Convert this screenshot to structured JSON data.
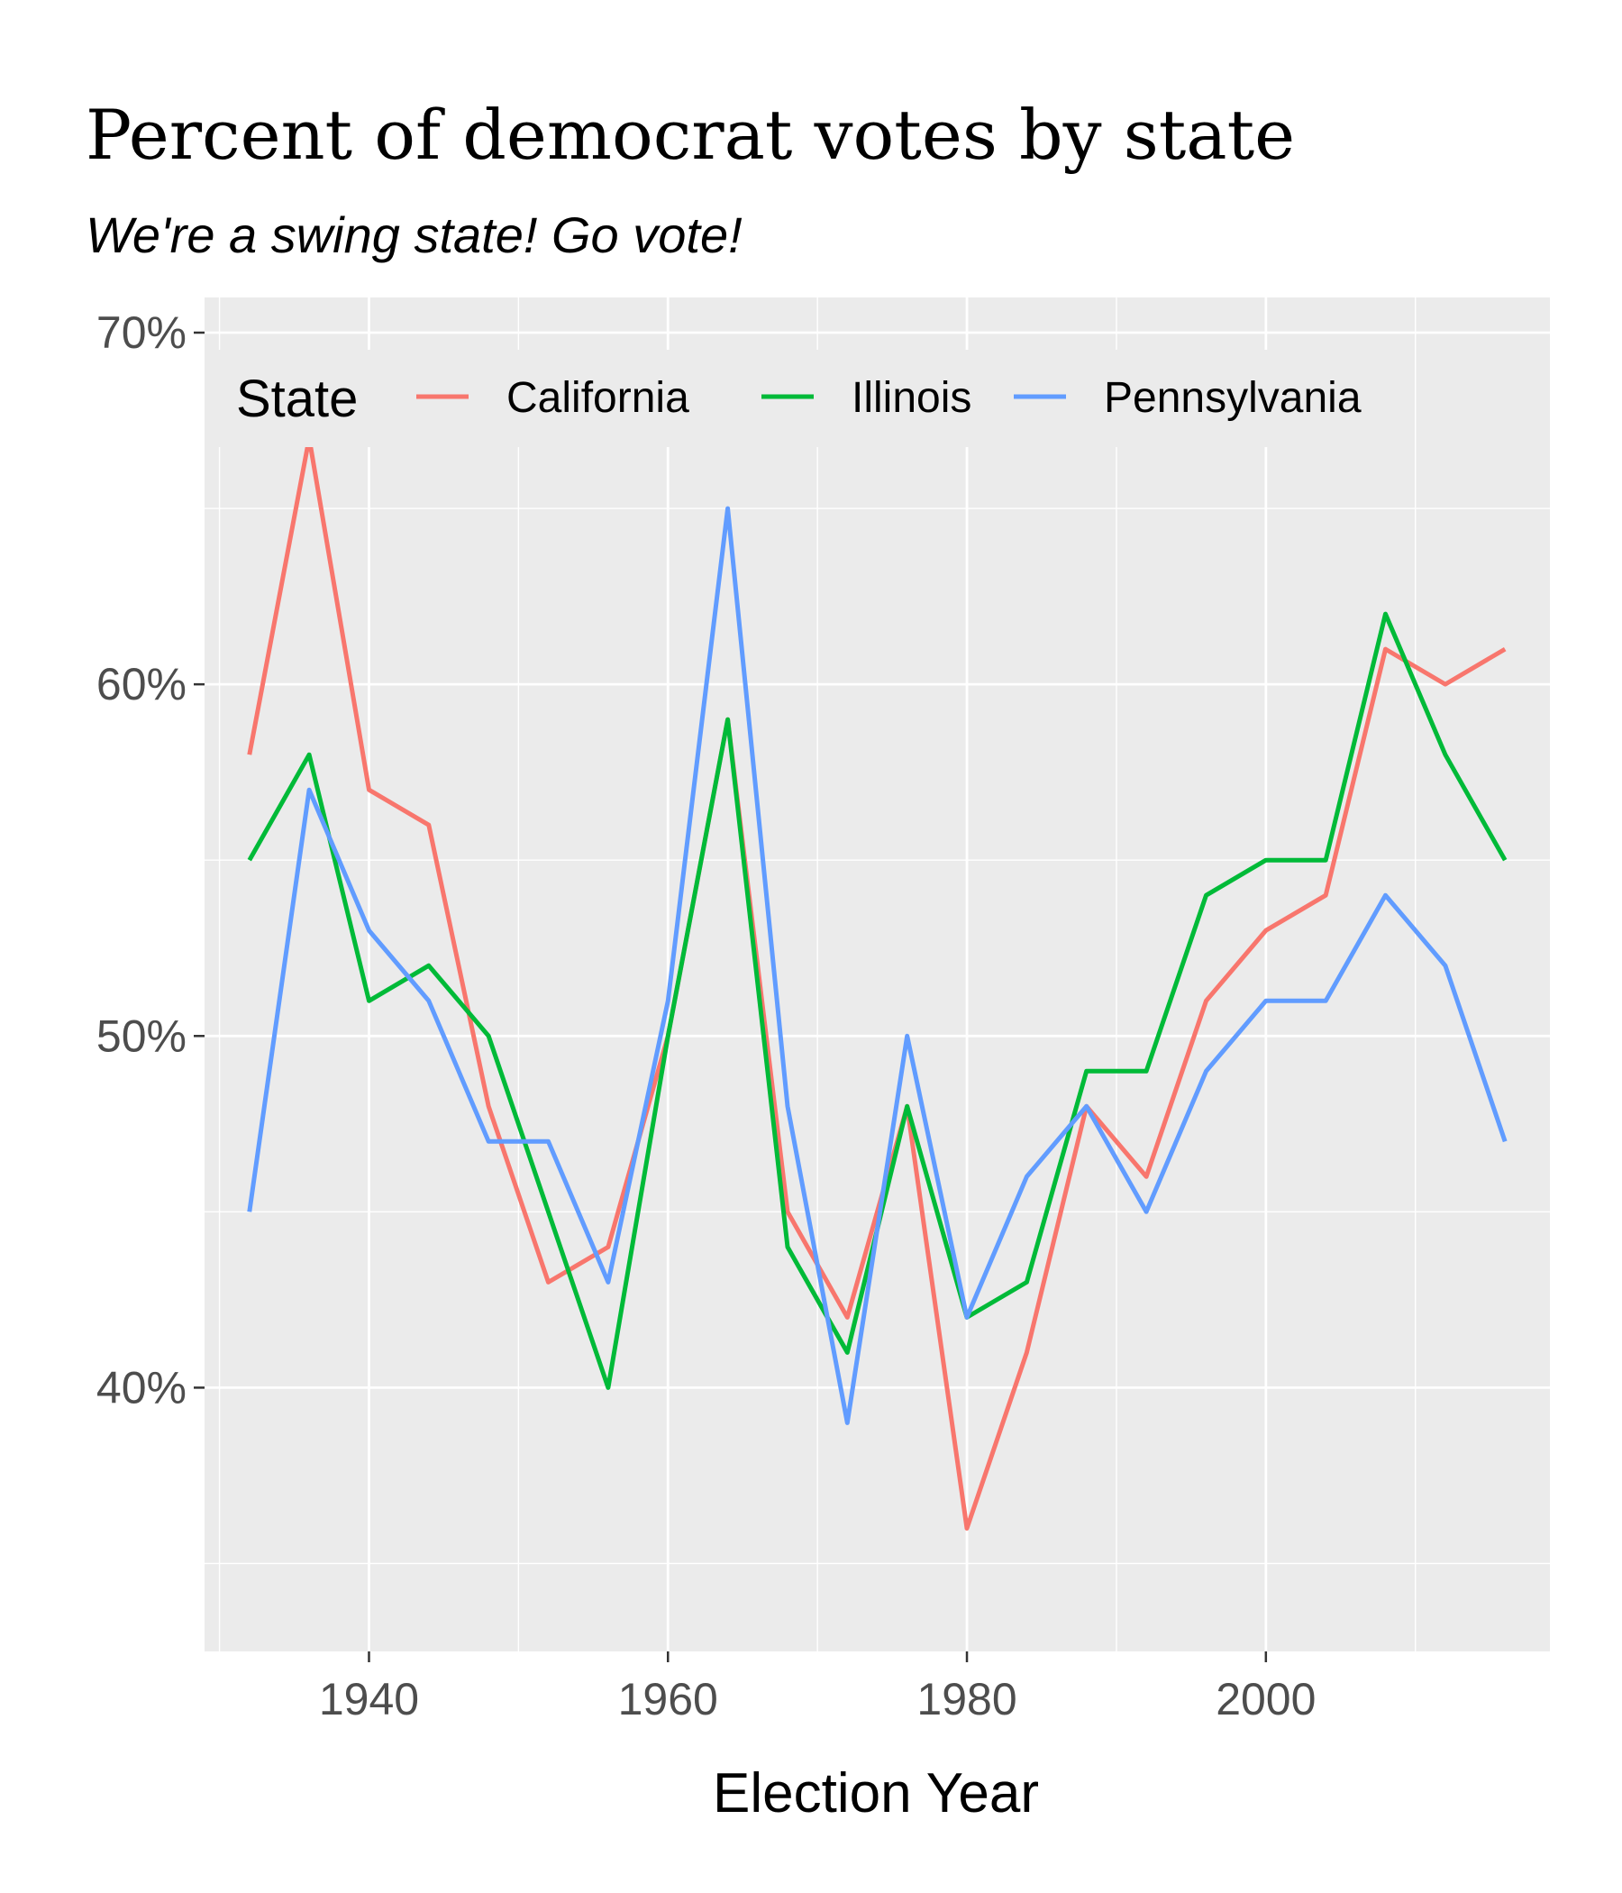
{
  "chart_data": {
    "type": "line",
    "title": "Percent of democrat votes by state",
    "subtitle": "We're a swing state! Go vote!",
    "xlabel": "Election Year",
    "ylabel": "",
    "xlim": [
      1929,
      2019
    ],
    "ylim": [
      32.5,
      71
    ],
    "x_ticks": [
      1940,
      1960,
      1980,
      2000
    ],
    "y_ticks": [
      40,
      50,
      60,
      70
    ],
    "y_tick_labels": [
      "40%",
      "50%",
      "60%",
      "70%"
    ],
    "x": [
      1932,
      1936,
      1940,
      1944,
      1948,
      1952,
      1956,
      1960,
      1964,
      1968,
      1972,
      1976,
      1980,
      1984,
      1988,
      1992,
      1996,
      2000,
      2004,
      2008,
      2012,
      2016
    ],
    "grid": true,
    "legend_position": "top-left inside",
    "legend_title": "State",
    "series": [
      {
        "name": "California",
        "color": "#F8766D",
        "values": [
          58,
          67,
          57,
          56,
          48,
          43,
          44,
          50,
          59,
          45,
          42,
          48,
          36,
          41,
          48,
          46,
          51,
          53,
          54,
          61,
          60,
          61
        ]
      },
      {
        "name": "Illinois",
        "color": "#00BA38",
        "values": [
          55,
          58,
          51,
          52,
          50,
          45,
          40,
          50,
          59,
          44,
          41,
          48,
          42,
          43,
          49,
          49,
          54,
          55,
          55,
          62,
          58,
          55
        ]
      },
      {
        "name": "Pennsylvania",
        "color": "#619CFF",
        "values": [
          45,
          57,
          53,
          51,
          47,
          47,
          43,
          51,
          65,
          48,
          39,
          50,
          42,
          46,
          48,
          45,
          49,
          51,
          51,
          54,
          52,
          47
        ]
      }
    ]
  }
}
